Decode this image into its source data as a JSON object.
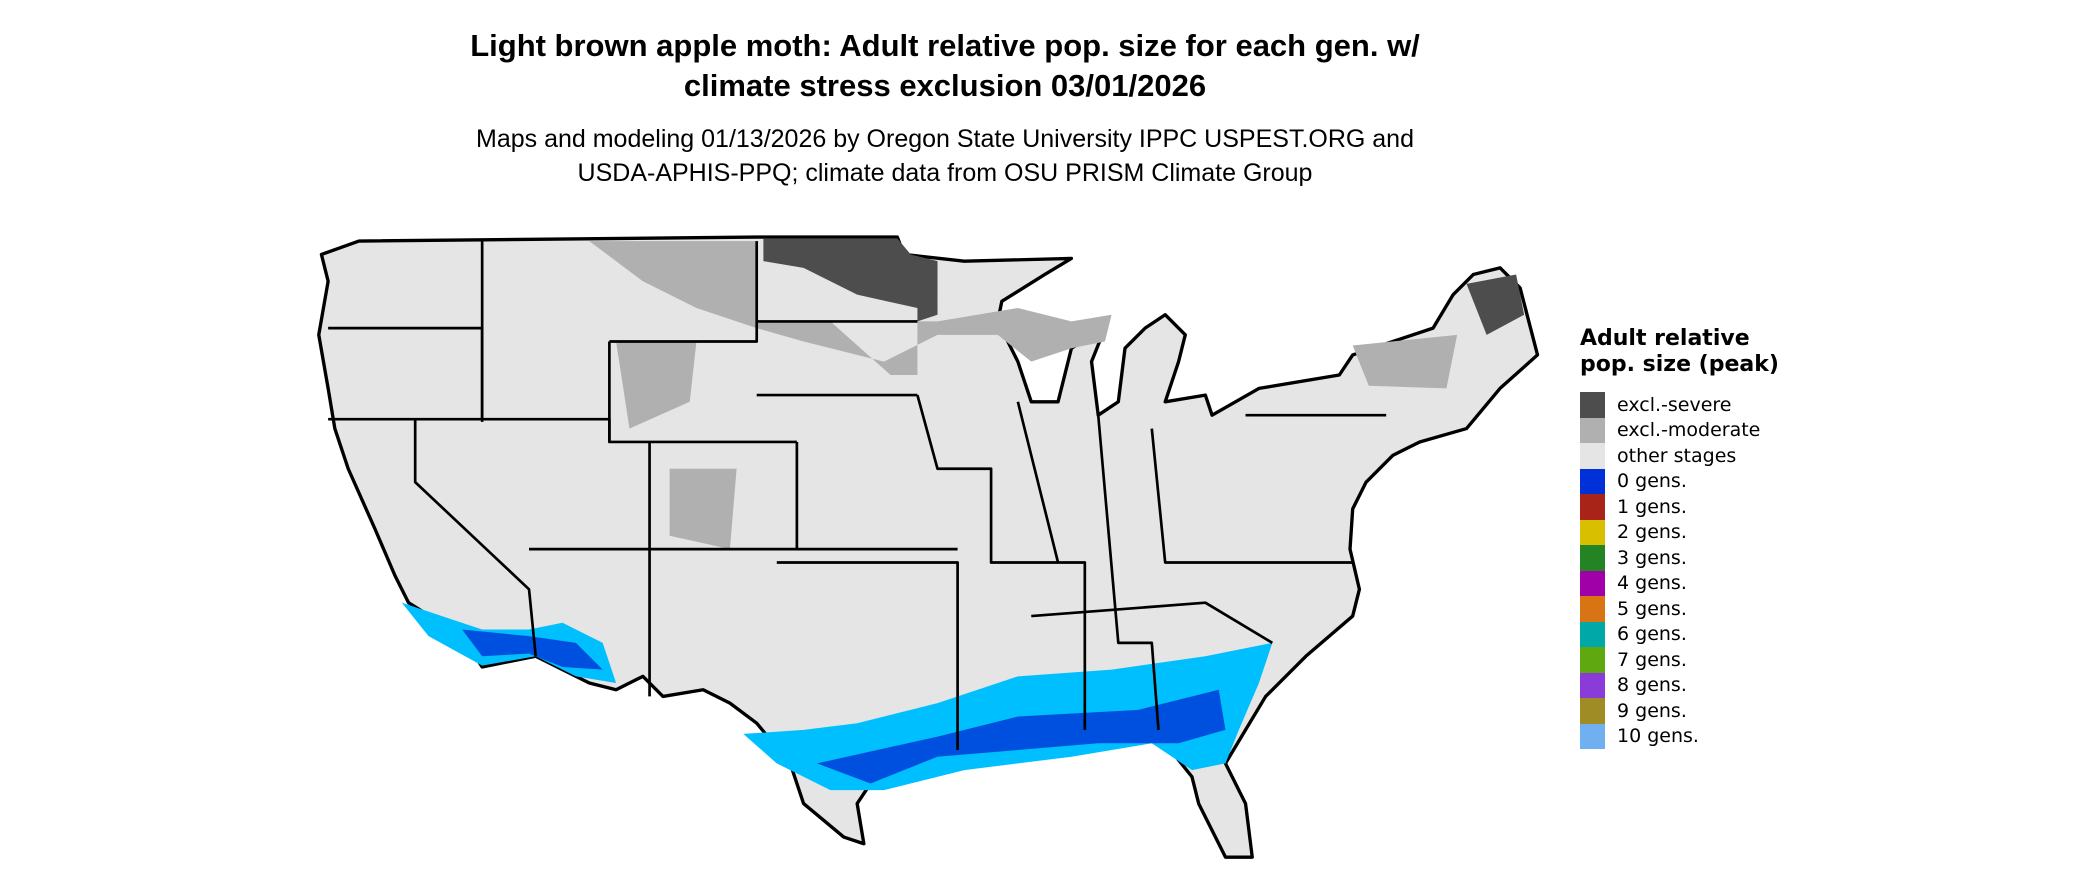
{
  "title": [
    "Light brown apple moth: Adult relative pop. size for each gen. w/",
    "climate stress exclusion 03/01/2026"
  ],
  "subtitle": [
    "Maps and modeling 01/13/2026 by Oregon State University IPPC USPEST.ORG and",
    "USDA-APHIS-PPQ; climate data from OSU PRISM Climate Group"
  ],
  "legend": {
    "title": "Adult relative pop. size (peak)",
    "items": [
      {
        "label": "excl.-severe",
        "color": "#4d4d4d"
      },
      {
        "label": "excl.-moderate",
        "color": "#b0b0b0"
      },
      {
        "label": "other stages",
        "color": "#e5e5e5"
      },
      {
        "label": "0 gens.",
        "color": "#0030d8"
      },
      {
        "label": "1 gens.",
        "color": "#a82418"
      },
      {
        "label": "2 gens.",
        "color": "#d8c000"
      },
      {
        "label": "3 gens.",
        "color": "#248424"
      },
      {
        "label": "4 gens.",
        "color": "#a000a8"
      },
      {
        "label": "5 gens.",
        "color": "#d87414"
      },
      {
        "label": "6 gens.",
        "color": "#00a8a8"
      },
      {
        "label": "7 gens.",
        "color": "#60a810"
      },
      {
        "label": "8 gens.",
        "color": "#8a3cd8"
      },
      {
        "label": "9 gens.",
        "color": "#a08c24"
      },
      {
        "label": "10 gens.",
        "color": "#70b0f0"
      }
    ]
  },
  "map_colors": {
    "land": "#e5e5e5",
    "severe": "#4d4d4d",
    "moderate": "#b0b0b0",
    "blue_light": "#00bfff",
    "blue_mid": "#0090f0",
    "blue_dark": "#0030d8",
    "border": "#000000"
  }
}
